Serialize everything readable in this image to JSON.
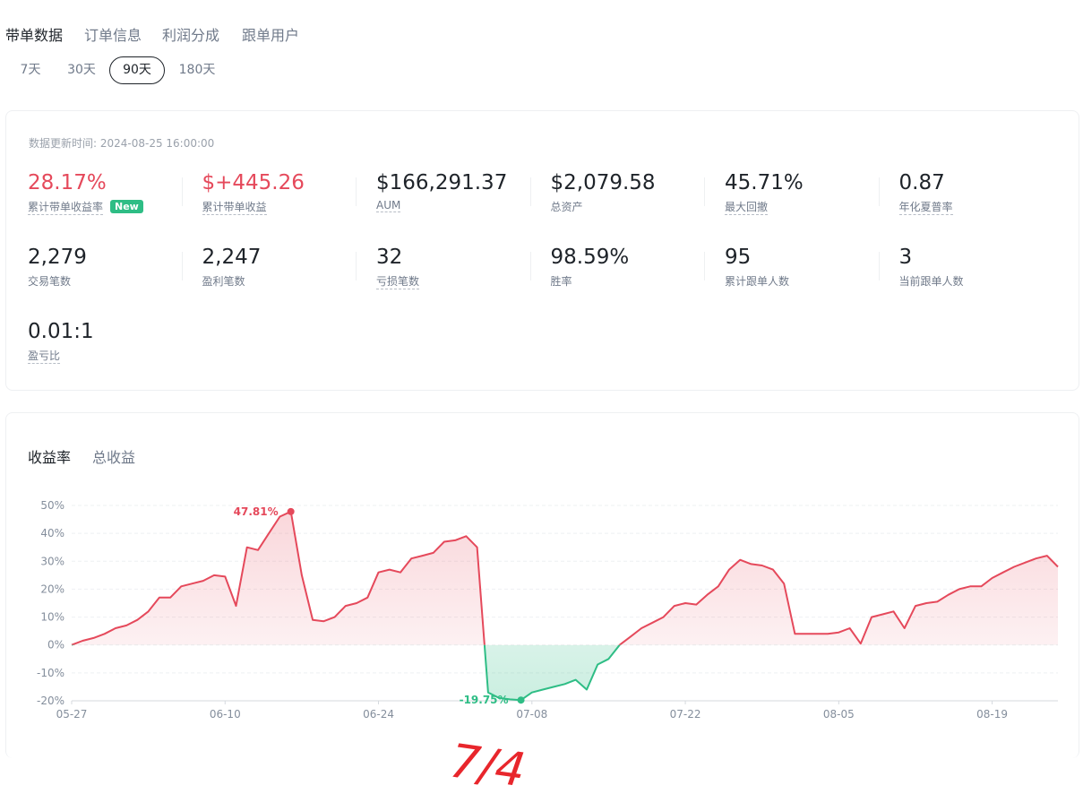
{
  "top_tabs": {
    "items": [
      "带单数据",
      "订单信息",
      "利润分成",
      "跟单用户"
    ],
    "active": 0
  },
  "period_tabs": {
    "items": [
      "7天",
      "30天",
      "90天",
      "180天"
    ],
    "active": 2
  },
  "stats_card": {
    "update_time": "数据更新时间: 2024-08-25 16:00:00",
    "badge": "New",
    "items": [
      {
        "value": "28.17%",
        "label": "累计带单收益率",
        "color": "#e5495b",
        "underline": true
      },
      {
        "value": "$+445.26",
        "label": "累计带单收益",
        "color": "#e5495b",
        "underline": true
      },
      {
        "value": "$166,291.37",
        "label": "AUM",
        "underline": true
      },
      {
        "value": "$2,079.58",
        "label": "总资产"
      },
      {
        "value": "45.71%",
        "label": "最大回撤",
        "underline": true
      },
      {
        "value": "0.87",
        "label": "年化夏普率",
        "underline": true
      },
      {
        "value": "2,279",
        "label": "交易笔数"
      },
      {
        "value": "2,247",
        "label": "盈利笔数"
      },
      {
        "value": "32",
        "label": "亏损笔数",
        "underline": true
      },
      {
        "value": "98.59%",
        "label": "胜率"
      },
      {
        "value": "95",
        "label": "累计跟单人数"
      },
      {
        "value": "3",
        "label": "当前跟单人数"
      },
      {
        "value": "0.01:1",
        "label": "盈亏比",
        "underline": true
      }
    ]
  },
  "chart_data": {
    "type": "line",
    "tabs": [
      "收益率",
      "总收益"
    ],
    "active_tab": 0,
    "x": [
      0,
      1,
      2,
      3,
      4,
      5,
      6,
      7,
      8,
      9,
      10,
      11,
      12,
      13,
      14,
      15,
      16,
      17,
      18,
      19,
      20,
      21,
      22,
      23,
      24,
      25,
      26,
      27,
      28,
      29,
      30,
      31,
      32,
      33,
      34,
      35,
      36,
      37,
      38,
      39,
      40,
      41,
      42,
      43,
      44,
      45,
      46,
      47,
      48,
      49,
      50,
      51,
      52,
      53,
      54,
      55,
      56,
      57,
      58,
      59,
      60,
      61,
      62,
      63,
      64,
      65,
      66,
      67,
      68,
      69,
      70,
      71,
      72,
      73,
      74,
      75,
      76,
      77,
      78,
      79,
      80,
      81,
      82,
      83,
      84,
      85,
      86,
      87,
      88,
      89,
      90
    ],
    "values": [
      0,
      1.5,
      2.5,
      4,
      6,
      7,
      9,
      12,
      17,
      17,
      21,
      22,
      23,
      25,
      24.5,
      14,
      35,
      34,
      40,
      46,
      47.81,
      25,
      9,
      8.5,
      10,
      14,
      15,
      17,
      26,
      27,
      26,
      31,
      32,
      33,
      37,
      37.5,
      39,
      35,
      -17,
      -19,
      -19.5,
      -19.75,
      -17,
      -16,
      -15,
      -14,
      -12.5,
      -16,
      -7,
      -5,
      0,
      3,
      6,
      8,
      10,
      14,
      15,
      14.5,
      18,
      21,
      27,
      30.5,
      29,
      28.5,
      27,
      22,
      4,
      4,
      4,
      4,
      4.5,
      6,
      0.5,
      10,
      11,
      12,
      6,
      14,
      15,
      15.5,
      18,
      20,
      21,
      21,
      24,
      26,
      28,
      29.5,
      31,
      32,
      28
    ],
    "color_up": "#e5495b",
    "color_down": "#2ebd85",
    "xlim": [
      0,
      90
    ],
    "xticks": [
      {
        "value": 0,
        "label": "05-27"
      },
      {
        "value": 14,
        "label": "06-10"
      },
      {
        "value": 28,
        "label": "06-24"
      },
      {
        "value": 42,
        "label": "07-08"
      },
      {
        "value": 56,
        "label": "07-22"
      },
      {
        "value": 70,
        "label": "08-05"
      },
      {
        "value": 84,
        "label": "08-19"
      }
    ],
    "ylim": [
      -20,
      50
    ],
    "yticks": [
      {
        "value": -20,
        "label": "-20%"
      },
      {
        "value": -10,
        "label": "-10%"
      },
      {
        "value": 0,
        "label": "0%"
      },
      {
        "value": 10,
        "label": "10%"
      },
      {
        "value": 20,
        "label": "20%"
      },
      {
        "value": 30,
        "label": "30%"
      },
      {
        "value": 40,
        "label": "40%"
      },
      {
        "value": 50,
        "label": "50%"
      }
    ],
    "grid": true,
    "annotations": [
      {
        "label": "47.81%",
        "x": 20,
        "value": 47.81
      },
      {
        "label": "-19.75%",
        "x": 41,
        "value": -19.75
      }
    ]
  },
  "handwritten_note": "7/4"
}
